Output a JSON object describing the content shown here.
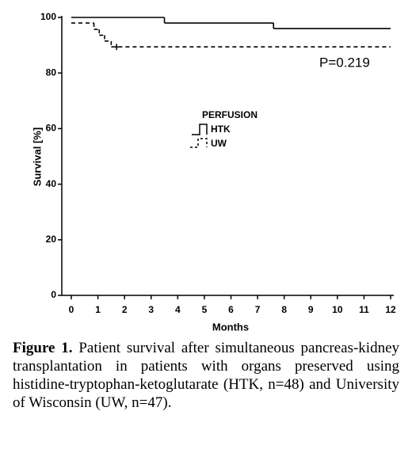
{
  "chart_data": {
    "type": "step",
    "x_label": "Months",
    "y_label": "Survival [%]",
    "xlim": [
      0,
      12
    ],
    "xticks": [
      0,
      1,
      2,
      3,
      4,
      5,
      6,
      7,
      8,
      9,
      10,
      11,
      12
    ],
    "ylim": [
      0,
      100
    ],
    "yticks": [
      0,
      20,
      40,
      60,
      80,
      100
    ],
    "legend_title": "PERFUSION",
    "annotation": "P=0.219",
    "series": [
      {
        "name": "HTK",
        "color": "#000000",
        "dash": false,
        "x": [
          0,
          3.5,
          7.6,
          12
        ],
        "values": [
          100,
          98,
          96,
          96
        ],
        "censored": []
      },
      {
        "name": "UW",
        "color": "#000000",
        "dash": true,
        "x": [
          0,
          0.85,
          1.05,
          1.25,
          1.5,
          12
        ],
        "values": [
          98,
          95.7,
          93.6,
          91.5,
          89.4,
          89.4
        ],
        "censored": [
          1.7
        ]
      }
    ]
  },
  "caption": {
    "label": "Figure 1.",
    "text": "Patient survival after simultaneous pancreas-kidney transplantation in patients with organs preserved using histidine-tryptophan-ketoglutarate (HTK, n=48) and University of Wisconsin (UW, n=47)."
  }
}
